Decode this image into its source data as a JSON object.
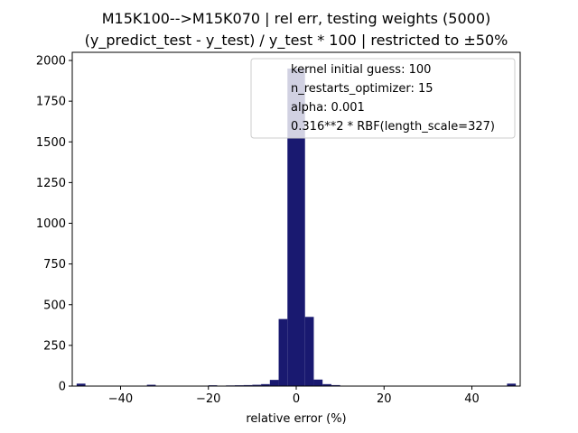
{
  "chart_data": {
    "type": "bar",
    "title": "M15K100-->M15K070 | rel err, testing weights (5000)",
    "subtitle": "(y_predict_test - y_test) / y_test * 100 | restricted to ±50%",
    "xlabel": "relative error (%)",
    "ylabel": "",
    "xlim": [
      -51,
      51
    ],
    "ylim": [
      0,
      2050
    ],
    "xticks": [
      -40,
      -20,
      0,
      20,
      40
    ],
    "xtick_labels": [
      "−40",
      "−20",
      "0",
      "20",
      "40"
    ],
    "yticks": [
      0,
      250,
      500,
      750,
      1000,
      1250,
      1500,
      1750,
      2000
    ],
    "ytick_labels": [
      "0",
      "250",
      "500",
      "750",
      "1000",
      "1250",
      "1500",
      "1750",
      "2000"
    ],
    "bar_color": "#191970",
    "grid": false,
    "bin_width": 2,
    "bins": [
      {
        "x0": -50,
        "value": 15
      },
      {
        "x0": -34,
        "value": 8
      },
      {
        "x0": -20,
        "value": 5
      },
      {
        "x0": -16,
        "value": 4
      },
      {
        "x0": -14,
        "value": 5
      },
      {
        "x0": -12,
        "value": 6
      },
      {
        "x0": -10,
        "value": 8
      },
      {
        "x0": -8,
        "value": 12
      },
      {
        "x0": -6,
        "value": 38
      },
      {
        "x0": -4,
        "value": 412
      },
      {
        "x0": -2,
        "value": 1950
      },
      {
        "x0": 0,
        "value": 1950
      },
      {
        "x0": 2,
        "value": 425
      },
      {
        "x0": 4,
        "value": 40
      },
      {
        "x0": 6,
        "value": 12
      },
      {
        "x0": 8,
        "value": 6
      },
      {
        "x0": 48,
        "value": 15
      }
    ],
    "legend": {
      "placement": "upper right",
      "entries": [
        "kernel initial guess: 100",
        "n_restarts_optimizer: 15",
        "alpha: 0.001",
        "0.316**2 * RBF(length_scale=327)"
      ]
    }
  }
}
